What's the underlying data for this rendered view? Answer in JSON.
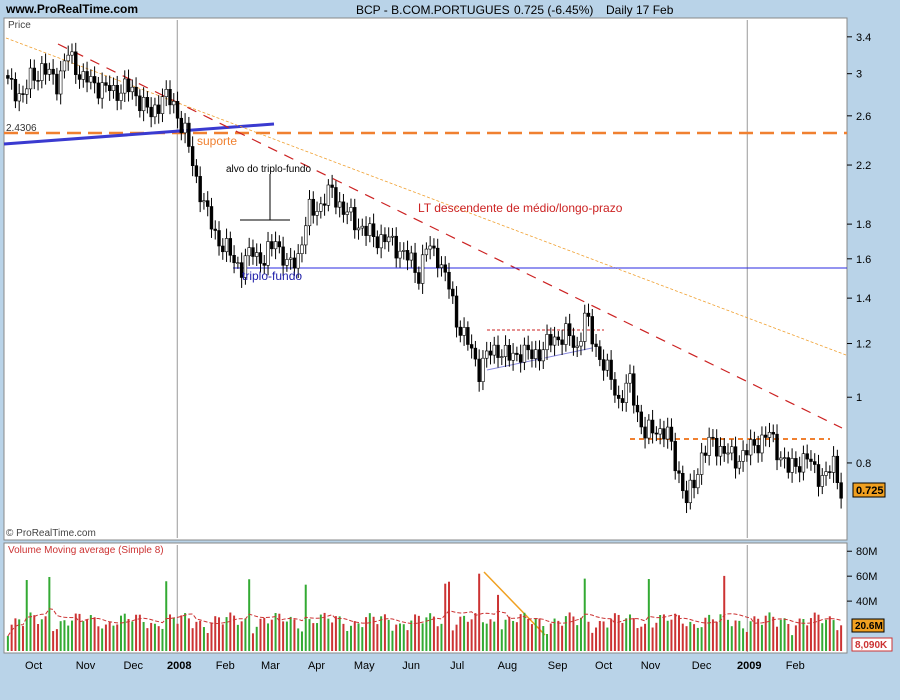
{
  "header": {
    "site": "www.ProRealTime.com",
    "symbol": "BCP - B.COM.PORTUGUES",
    "change": "0.725 (-6.45%)",
    "period": "Daily  17 Feb"
  },
  "chart_data": [
    {
      "type": "candlestick",
      "title": "",
      "ylabel": "Price",
      "yscale": "log",
      "ylim": [
        0.62,
        3.6
      ],
      "y_ticks": [
        "3.4",
        "3",
        "2.6",
        "2.2",
        "1.8",
        "1.6",
        "1.4",
        "1.2",
        "1",
        "0.8"
      ],
      "last_price_label": "0.725",
      "watermark": "© ProRealTime.com",
      "key_level_label": "2.4306",
      "annotations": [
        "suporte",
        "alvo do triplo-fundo",
        "LT descendente de médio/longo-prazo",
        "triplo-fundo"
      ],
      "price_path": [
        [
          0,
          2.9
        ],
        [
          4,
          2.78
        ],
        [
          6,
          2.95
        ],
        [
          9,
          3.05
        ],
        [
          13,
          2.92
        ],
        [
          16,
          3.2
        ],
        [
          20,
          2.95
        ],
        [
          24,
          2.88
        ],
        [
          28,
          2.82
        ],
        [
          31,
          2.86
        ],
        [
          34,
          2.8
        ],
        [
          38,
          2.6
        ],
        [
          41,
          2.78
        ],
        [
          44,
          2.7
        ],
        [
          47,
          2.45
        ],
        [
          50,
          2.1
        ],
        [
          53,
          1.85
        ],
        [
          56,
          1.7
        ],
        [
          59,
          1.62
        ],
        [
          62,
          1.55
        ],
        [
          65,
          1.65
        ],
        [
          68,
          1.58
        ],
        [
          71,
          1.72
        ],
        [
          74,
          1.55
        ],
        [
          77,
          1.62
        ],
        [
          80,
          1.88
        ],
        [
          83,
          1.92
        ],
        [
          86,
          2.02
        ],
        [
          89,
          1.88
        ],
        [
          92,
          1.82
        ],
        [
          95,
          1.75
        ],
        [
          98,
          1.72
        ],
        [
          101,
          1.7
        ],
        [
          104,
          1.65
        ],
        [
          107,
          1.58
        ],
        [
          109,
          1.52
        ],
        [
          111,
          1.66
        ],
        [
          114,
          1.62
        ],
        [
          117,
          1.45
        ],
        [
          119,
          1.3
        ],
        [
          122,
          1.2
        ],
        [
          125,
          1.1
        ],
        [
          127,
          1.15
        ],
        [
          130,
          1.18
        ],
        [
          133,
          1.14
        ],
        [
          136,
          1.17
        ],
        [
          139,
          1.15
        ],
        [
          142,
          1.18
        ],
        [
          145,
          1.22
        ],
        [
          148,
          1.24
        ],
        [
          151,
          1.18
        ],
        [
          153,
          1.32
        ],
        [
          155,
          1.22
        ],
        [
          157,
          1.15
        ],
        [
          160,
          1.06
        ],
        [
          162,
          0.99
        ],
        [
          165,
          1.05
        ],
        [
          167,
          0.95
        ],
        [
          169,
          0.88
        ],
        [
          172,
          0.9
        ],
        [
          175,
          0.88
        ],
        [
          178,
          0.77
        ],
        [
          180,
          0.7
        ],
        [
          182,
          0.75
        ],
        [
          184,
          0.82
        ],
        [
          187,
          0.86
        ],
        [
          190,
          0.83
        ],
        [
          193,
          0.81
        ],
        [
          196,
          0.83
        ],
        [
          199,
          0.86
        ],
        [
          202,
          0.88
        ],
        [
          205,
          0.82
        ],
        [
          207,
          0.78
        ],
        [
          209,
          0.8
        ],
        [
          212,
          0.81
        ],
        [
          215,
          0.77
        ],
        [
          217,
          0.76
        ],
        [
          219,
          0.8
        ],
        [
          221,
          0.73
        ]
      ]
    },
    {
      "type": "bar",
      "title": "Volume Moving average (Simple 8)",
      "y_ticks": [
        "80M",
        "60M",
        "40M"
      ],
      "ylim": [
        0,
        85
      ],
      "latest_volume_label": "20.6M",
      "average_label": "8,090K"
    }
  ],
  "x_axis": [
    "Oct",
    "Nov",
    "Dec",
    "2008",
    "Feb",
    "Mar",
    "Apr",
    "May",
    "Jun",
    "Jul",
    "Aug",
    "Sep",
    "Oct",
    "Nov",
    "Dec",
    "2009",
    "Feb"
  ],
  "colors": {
    "background": "#b9d3e8",
    "bull": "#33aa33",
    "bear": "#cc3333",
    "trend_red": "#cc2222",
    "support": "#f08030",
    "blue": "#3a3ad0"
  }
}
